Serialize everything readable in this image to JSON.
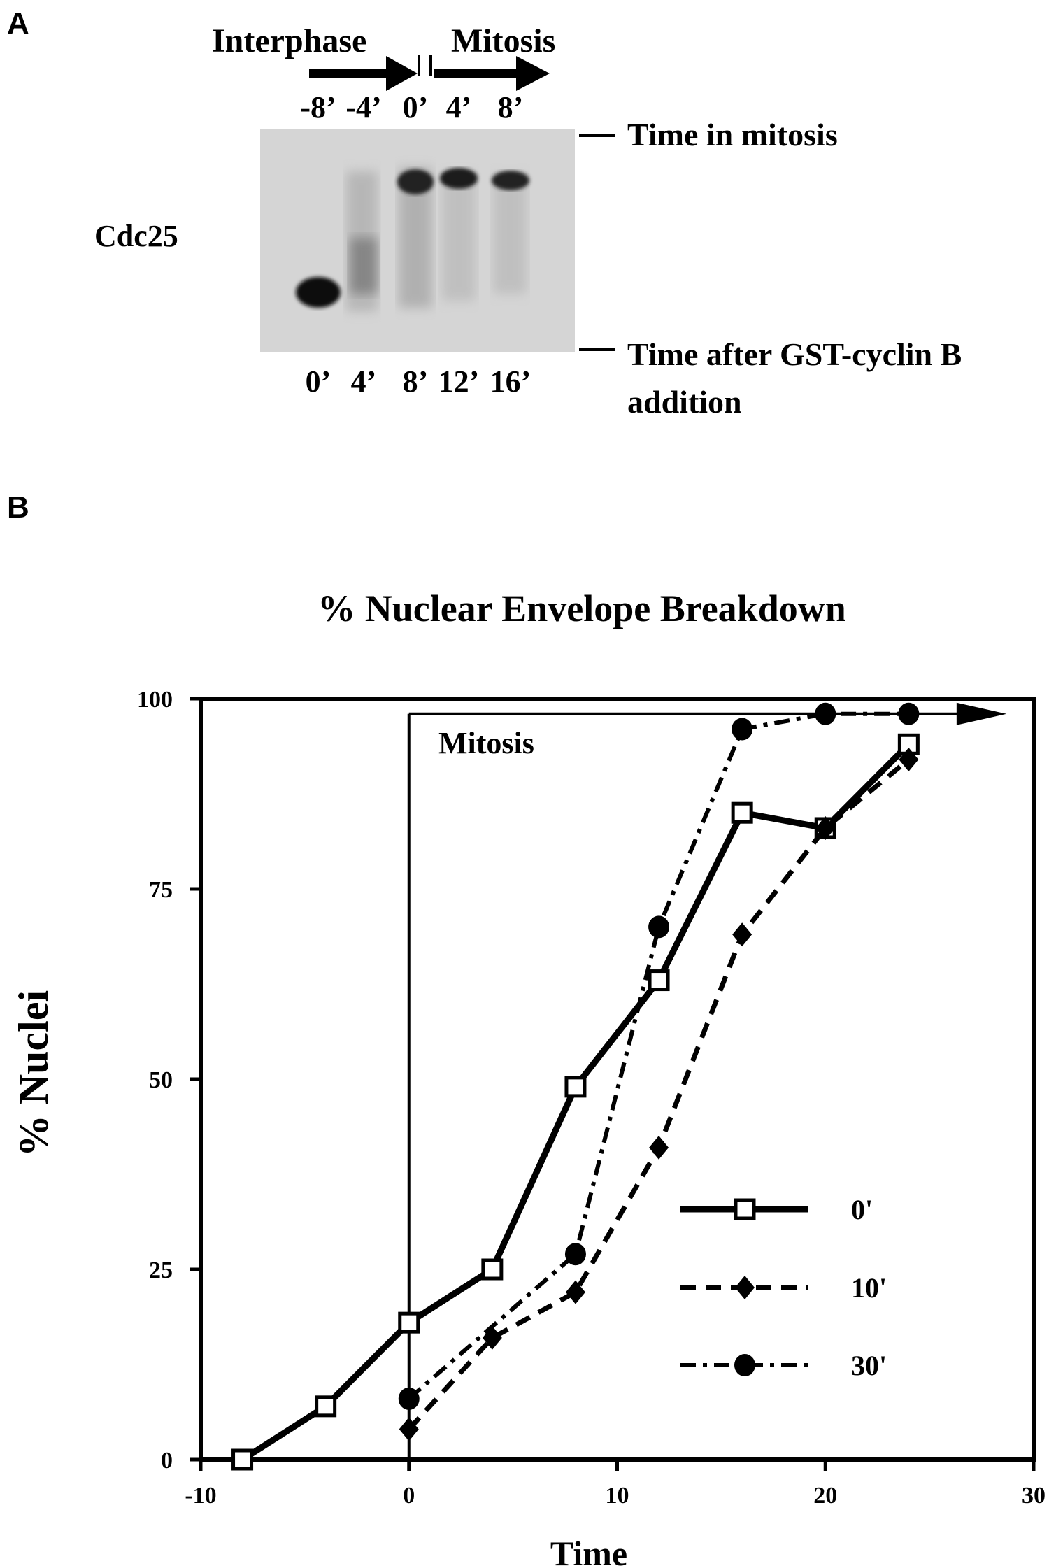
{
  "panel_a": {
    "label": "A",
    "phase_interphase": "Interphase",
    "phase_mitosis": "Mitosis",
    "top_lane_labels": [
      "-8’",
      "-4’",
      "0’",
      "4’",
      "8’"
    ],
    "bottom_lane_labels": [
      "0’",
      "4’",
      "8’",
      "12’",
      "16’"
    ],
    "protein_label": "Cdc25",
    "top_legend": "Time in mitosis",
    "bottom_legend_line1": "Time after GST-cyclin B",
    "bottom_legend_line2": "addition"
  },
  "panel_b": {
    "label": "B",
    "mitosis_label": "Mitosis"
  },
  "chart_data": {
    "type": "line",
    "title": "% Nuclear Envelope Breakdown",
    "xlabel": "Time",
    "ylabel": "% Nuclei",
    "xlim": [
      -10,
      30
    ],
    "ylim": [
      0,
      100
    ],
    "xticks": [
      "-10",
      "0",
      "10",
      "20",
      "30"
    ],
    "xtick_values": [
      -10,
      0,
      10,
      20,
      30
    ],
    "yticks": [
      "0",
      "25",
      "50",
      "75",
      "100"
    ],
    "ytick_values": [
      0,
      25,
      50,
      75,
      100
    ],
    "grid": false,
    "legend_placement": "bottom-right",
    "series": [
      {
        "name": "0'",
        "marker": "open-square",
        "style": "solid",
        "x": [
          -8,
          -4,
          0,
          4,
          8,
          12,
          16,
          20,
          24
        ],
        "y": [
          0,
          7,
          18,
          25,
          49,
          63,
          85,
          83,
          94
        ]
      },
      {
        "name": "10'",
        "marker": "diamond",
        "style": "dashed",
        "x": [
          0,
          4,
          8,
          12,
          16,
          20,
          24
        ],
        "y": [
          4,
          16,
          22,
          41,
          69,
          83,
          92
        ]
      },
      {
        "name": "30'",
        "marker": "circle",
        "style": "dash-dot",
        "x": [
          0,
          8,
          12,
          16,
          20,
          24
        ],
        "y": [
          8,
          27,
          70,
          96,
          98,
          98
        ]
      }
    ]
  }
}
